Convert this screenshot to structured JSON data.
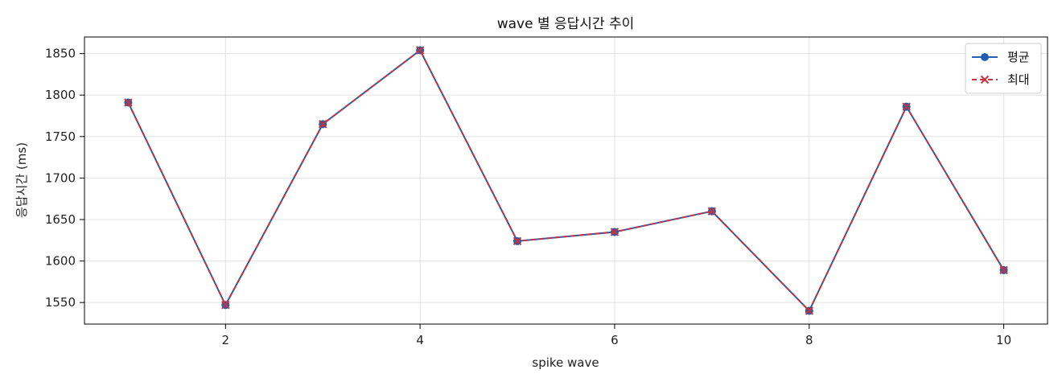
{
  "chart_data": {
    "type": "line",
    "title": "wave 별 응답시간 추이",
    "xlabel": "spike wave",
    "ylabel": "응답시간 (ms)",
    "x": [
      1,
      2,
      3,
      4,
      5,
      6,
      7,
      8,
      9,
      10
    ],
    "series": [
      {
        "name": "평균",
        "values": [
          1791,
          1547,
          1765,
          1854,
          1624,
          1635,
          1660,
          1540,
          1786,
          1589
        ],
        "color": "#1f5fb4",
        "marker": "circle",
        "line": "solid"
      },
      {
        "name": "최대",
        "values": [
          1791,
          1547,
          1765,
          1854,
          1624,
          1635,
          1660,
          1540,
          1786,
          1589
        ],
        "color": "#c8333a",
        "marker": "x",
        "line": "dashed"
      }
    ],
    "xlim": [
      0.55,
      10.45
    ],
    "ylim": [
      1524,
      1870
    ],
    "xticks": [
      2,
      4,
      6,
      8,
      10
    ],
    "yticks": [
      1550,
      1600,
      1650,
      1700,
      1750,
      1800,
      1850
    ],
    "grid": true,
    "legend_position": "top-right"
  }
}
